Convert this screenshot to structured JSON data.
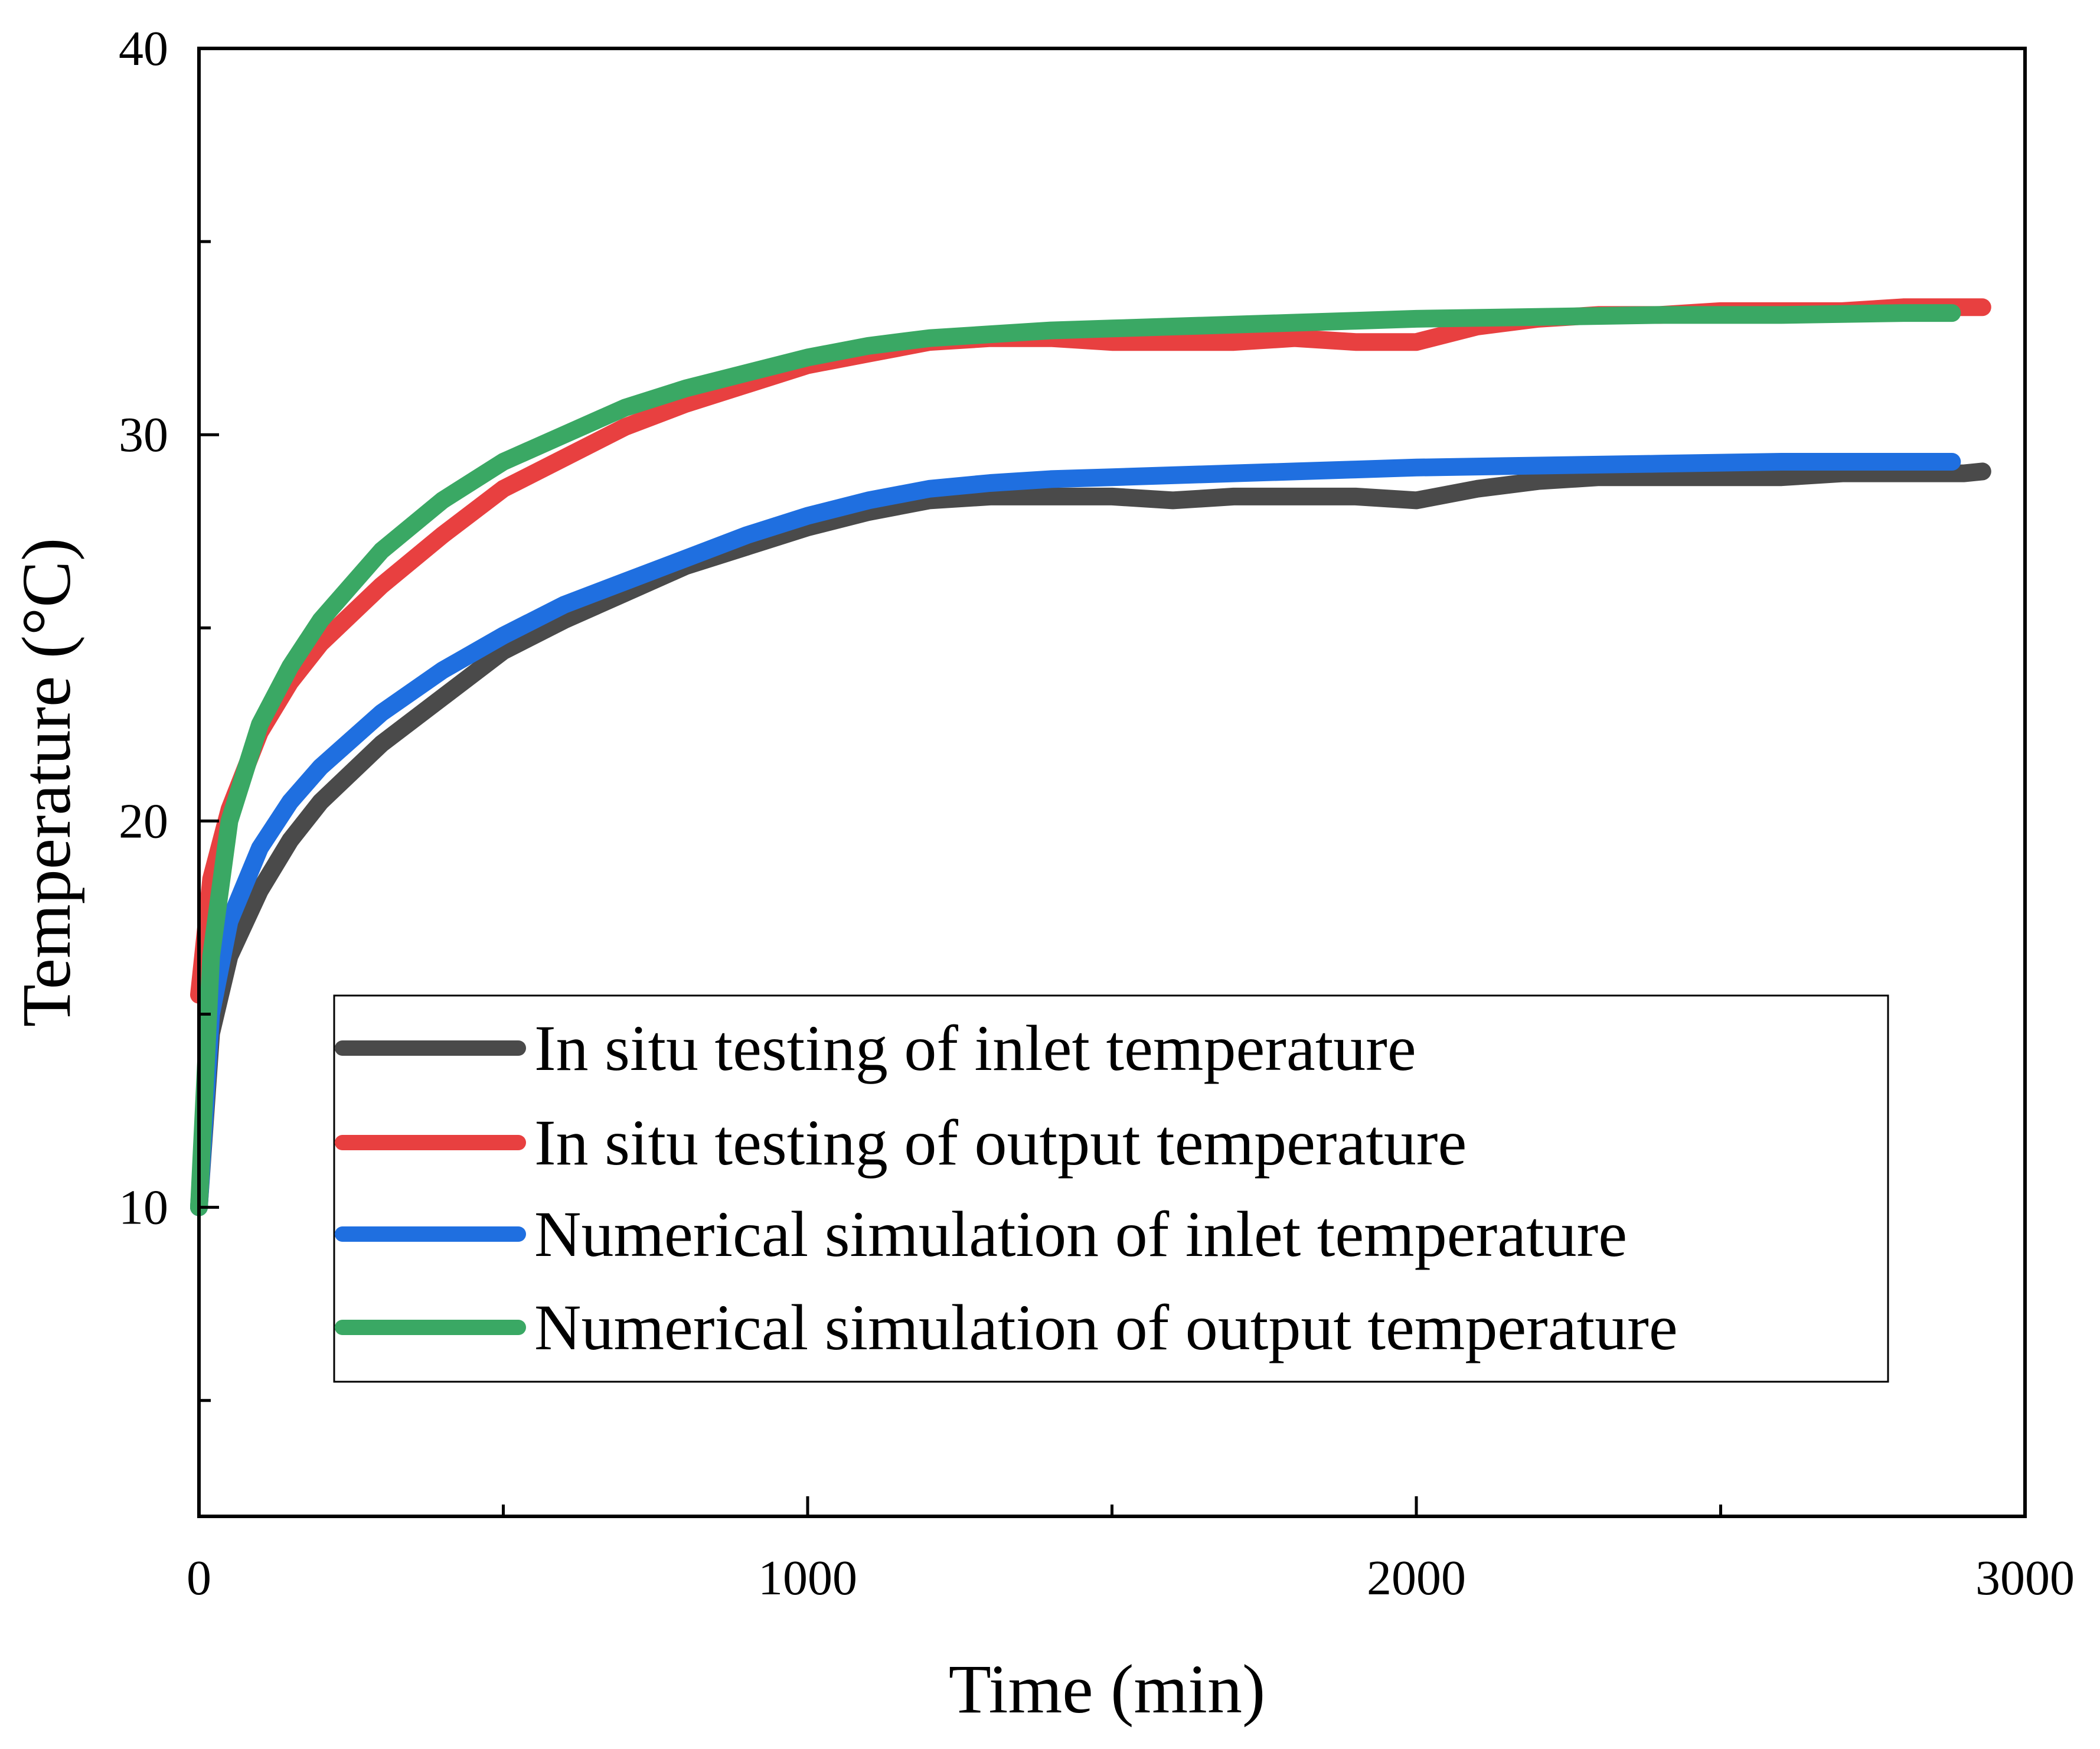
{
  "chart_data": {
    "type": "line",
    "title": "",
    "xlabel": "Time (min)",
    "ylabel": "Temperature (°C)",
    "xlim": [
      0,
      3000
    ],
    "ylim": [
      2,
      40
    ],
    "xticks": [
      0,
      1000,
      2000,
      3000
    ],
    "yticks": [
      10,
      20,
      30,
      40
    ],
    "xticklabels": [
      "0",
      "1000",
      "2000",
      "3000"
    ],
    "yticklabels": [
      "10",
      "20",
      "30",
      "40"
    ],
    "grid": false,
    "legend_position": "lower-right",
    "series": [
      {
        "name": "In situ testing of inlet temperature",
        "color": "#4a4a4a",
        "x": [
          0,
          20,
          50,
          100,
          150,
          200,
          300,
          400,
          500,
          600,
          700,
          800,
          900,
          1000,
          1100,
          1200,
          1300,
          1400,
          1500,
          1600,
          1700,
          1800,
          1900,
          2000,
          2100,
          2200,
          2300,
          2400,
          2500,
          2600,
          2700,
          2800,
          2900,
          2930
        ],
        "y": [
          10,
          14.5,
          16.5,
          18.2,
          19.5,
          20.5,
          22,
          23.2,
          24.4,
          25.2,
          25.9,
          26.6,
          27.1,
          27.6,
          28,
          28.3,
          28.4,
          28.4,
          28.4,
          28.3,
          28.4,
          28.4,
          28.4,
          28.3,
          28.6,
          28.8,
          28.9,
          28.9,
          28.9,
          28.9,
          29,
          29,
          29,
          29.05
        ]
      },
      {
        "name": "In situ testing of output temperature",
        "color": "#e84040",
        "x": [
          0,
          20,
          50,
          100,
          150,
          200,
          300,
          400,
          500,
          600,
          700,
          800,
          900,
          1000,
          1100,
          1200,
          1300,
          1400,
          1500,
          1600,
          1700,
          1800,
          1900,
          2000,
          2100,
          2200,
          2300,
          2400,
          2500,
          2600,
          2700,
          2800,
          2900,
          2930
        ],
        "y": [
          15.5,
          18.5,
          20.3,
          22.3,
          23.6,
          24.6,
          26.1,
          27.4,
          28.6,
          29.4,
          30.2,
          30.8,
          31.3,
          31.8,
          32.1,
          32.4,
          32.5,
          32.5,
          32.4,
          32.4,
          32.4,
          32.5,
          32.4,
          32.4,
          32.8,
          33,
          33.1,
          33.1,
          33.2,
          33.2,
          33.2,
          33.3,
          33.3,
          33.3
        ]
      },
      {
        "name": "Numerical simulation of inlet temperature",
        "color": "#1f6fe0",
        "x": [
          0,
          20,
          50,
          100,
          150,
          200,
          300,
          400,
          500,
          600,
          700,
          800,
          900,
          1000,
          1100,
          1200,
          1300,
          1400,
          1500,
          1600,
          1700,
          1800,
          1900,
          2000,
          2200,
          2400,
          2600,
          2800,
          2880
        ],
        "y": [
          10,
          15,
          17.4,
          19.3,
          20.5,
          21.4,
          22.8,
          23.9,
          24.8,
          25.6,
          26.2,
          26.8,
          27.4,
          27.9,
          28.3,
          28.6,
          28.75,
          28.85,
          28.9,
          28.95,
          29,
          29.05,
          29.1,
          29.15,
          29.2,
          29.25,
          29.3,
          29.3,
          29.3
        ]
      },
      {
        "name": "Numerical simulation of output temperature",
        "color": "#3aa864",
        "x": [
          0,
          20,
          50,
          100,
          150,
          200,
          300,
          400,
          500,
          600,
          700,
          800,
          900,
          1000,
          1100,
          1200,
          1300,
          1400,
          1500,
          1600,
          1700,
          1800,
          1900,
          2000,
          2200,
          2400,
          2600,
          2800,
          2880
        ],
        "y": [
          10,
          16.5,
          20,
          22.5,
          24,
          25.2,
          27,
          28.3,
          29.3,
          30,
          30.7,
          31.2,
          31.6,
          32,
          32.3,
          32.5,
          32.6,
          32.7,
          32.75,
          32.8,
          32.85,
          32.9,
          32.95,
          33,
          33.05,
          33.1,
          33.1,
          33.15,
          33.15
        ]
      }
    ]
  }
}
